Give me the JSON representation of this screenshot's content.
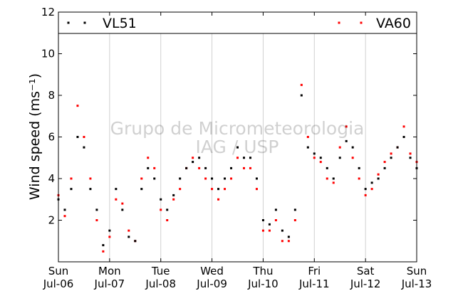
{
  "chart_data": {
    "type": "scatter",
    "ylabel": "Wind speed",
    "ylabel_unit": "(ms⁻¹)",
    "ylim": [
      0,
      12
    ],
    "yticks": [
      2,
      4,
      6,
      8,
      10,
      12
    ],
    "xlim": [
      "2014-07-06",
      "2014-07-13"
    ],
    "xticks": [
      {
        "date": "2014-07-06",
        "day": "Sun",
        "label": "Jul-06"
      },
      {
        "date": "2014-07-07",
        "day": "Mon",
        "label": "Jul-07"
      },
      {
        "date": "2014-07-08",
        "day": "Tue",
        "label": "Jul-08"
      },
      {
        "date": "2014-07-09",
        "day": "Wed",
        "label": "Jul-09"
      },
      {
        "date": "2014-07-10",
        "day": "Thu",
        "label": "Jul-10"
      },
      {
        "date": "2014-07-11",
        "day": "Fri",
        "label": "Jul-11"
      },
      {
        "date": "2014-07-12",
        "day": "Sat",
        "label": "Jul-12"
      },
      {
        "date": "2014-07-13",
        "day": "Sun",
        "label": "Jul-13"
      }
    ],
    "grid": "vertical",
    "legend_position": "top",
    "watermark": [
      "Grupo de Micrometeorologia",
      "IAG / USP"
    ],
    "colors": {
      "VL51": "#000000",
      "VA60": "#ff0000"
    },
    "series": [
      {
        "name": "VL51",
        "x": [
          "2014-07-06 00:00",
          "2014-07-06 03:00",
          "2014-07-06 06:00",
          "2014-07-06 09:00",
          "2014-07-06 12:00",
          "2014-07-06 15:00",
          "2014-07-06 18:00",
          "2014-07-06 21:00",
          "2014-07-07 00:00",
          "2014-07-07 03:00",
          "2014-07-07 06:00",
          "2014-07-07 09:00",
          "2014-07-07 12:00",
          "2014-07-07 15:00",
          "2014-07-07 18:00",
          "2014-07-07 21:00",
          "2014-07-08 00:00",
          "2014-07-08 03:00",
          "2014-07-08 06:00",
          "2014-07-08 09:00",
          "2014-07-08 12:00",
          "2014-07-08 15:00",
          "2014-07-08 18:00",
          "2014-07-08 21:00",
          "2014-07-09 00:00",
          "2014-07-09 03:00",
          "2014-07-09 06:00",
          "2014-07-09 09:00",
          "2014-07-09 12:00",
          "2014-07-09 15:00",
          "2014-07-09 18:00",
          "2014-07-09 21:00",
          "2014-07-10 00:00",
          "2014-07-10 03:00",
          "2014-07-10 06:00",
          "2014-07-10 09:00",
          "2014-07-10 12:00",
          "2014-07-10 15:00",
          "2014-07-10 18:00",
          "2014-07-10 21:00",
          "2014-07-11 00:00",
          "2014-07-11 03:00",
          "2014-07-11 06:00",
          "2014-07-11 09:00",
          "2014-07-11 12:00",
          "2014-07-11 15:00",
          "2014-07-11 18:00",
          "2014-07-11 21:00",
          "2014-07-12 00:00",
          "2014-07-12 03:00",
          "2014-07-12 06:00",
          "2014-07-12 09:00",
          "2014-07-12 12:00",
          "2014-07-12 15:00",
          "2014-07-12 18:00",
          "2014-07-12 21:00",
          "2014-07-13 00:00"
        ],
        "y": [
          3.0,
          2.5,
          3.5,
          6.0,
          5.5,
          3.5,
          2.5,
          0.8,
          1.5,
          3.5,
          2.5,
          1.2,
          1.0,
          3.5,
          4.5,
          4.0,
          3.0,
          2.5,
          3.2,
          4.0,
          4.5,
          4.8,
          5.0,
          4.5,
          4.0,
          3.5,
          4.0,
          4.5,
          5.5,
          5.0,
          5.0,
          4.0,
          2.0,
          1.8,
          2.5,
          1.5,
          1.2,
          2.5,
          8.0,
          5.5,
          5.2,
          5.0,
          4.5,
          4.0,
          5.0,
          5.8,
          5.5,
          4.5,
          3.5,
          3.8,
          4.0,
          4.5,
          5.0,
          5.5,
          6.0,
          5.0,
          4.5
        ]
      },
      {
        "name": "VA60",
        "x": [
          "2014-07-06 00:00",
          "2014-07-06 03:00",
          "2014-07-06 06:00",
          "2014-07-06 09:00",
          "2014-07-06 12:00",
          "2014-07-06 15:00",
          "2014-07-06 18:00",
          "2014-07-06 21:00",
          "2014-07-07 00:00",
          "2014-07-07 03:00",
          "2014-07-07 06:00",
          "2014-07-07 09:00",
          "2014-07-07 12:00",
          "2014-07-07 15:00",
          "2014-07-07 18:00",
          "2014-07-07 21:00",
          "2014-07-08 00:00",
          "2014-07-08 03:00",
          "2014-07-08 06:00",
          "2014-07-08 09:00",
          "2014-07-08 12:00",
          "2014-07-08 15:00",
          "2014-07-08 18:00",
          "2014-07-08 21:00",
          "2014-07-09 00:00",
          "2014-07-09 03:00",
          "2014-07-09 06:00",
          "2014-07-09 09:00",
          "2014-07-09 12:00",
          "2014-07-09 15:00",
          "2014-07-09 18:00",
          "2014-07-09 21:00",
          "2014-07-10 00:00",
          "2014-07-10 03:00",
          "2014-07-10 06:00",
          "2014-07-10 09:00",
          "2014-07-10 12:00",
          "2014-07-10 15:00",
          "2014-07-10 18:00",
          "2014-07-10 21:00",
          "2014-07-11 00:00",
          "2014-07-11 03:00",
          "2014-07-11 06:00",
          "2014-07-11 09:00",
          "2014-07-11 12:00",
          "2014-07-11 15:00",
          "2014-07-11 18:00",
          "2014-07-11 21:00",
          "2014-07-12 00:00",
          "2014-07-12 03:00",
          "2014-07-12 06:00",
          "2014-07-12 09:00",
          "2014-07-12 12:00",
          "2014-07-12 15:00",
          "2014-07-12 18:00",
          "2014-07-12 21:00",
          "2014-07-13 00:00"
        ],
        "y": [
          3.2,
          2.2,
          4.0,
          7.5,
          6.0,
          4.0,
          2.0,
          0.5,
          1.2,
          3.0,
          2.8,
          1.5,
          1.0,
          4.0,
          5.0,
          4.5,
          2.5,
          2.0,
          3.0,
          3.5,
          4.5,
          5.0,
          4.5,
          4.0,
          3.5,
          3.0,
          3.5,
          4.0,
          5.0,
          4.5,
          4.5,
          3.5,
          1.5,
          1.5,
          2.0,
          1.0,
          1.0,
          2.0,
          8.5,
          6.0,
          5.0,
          4.8,
          4.0,
          3.8,
          5.5,
          6.5,
          5.0,
          4.0,
          3.2,
          3.5,
          4.2,
          4.8,
          5.2,
          5.5,
          6.5,
          5.2,
          4.8
        ]
      }
    ]
  }
}
